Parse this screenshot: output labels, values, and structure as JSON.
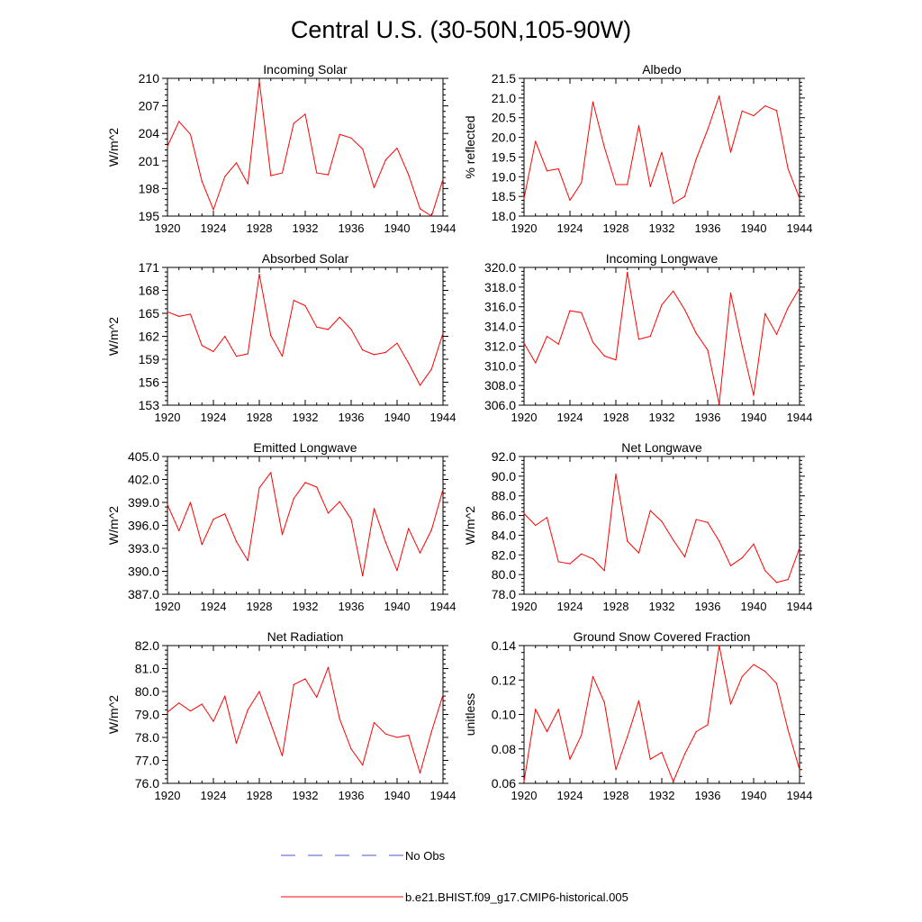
{
  "title": "Central U.S. (30-50N,105-90W)",
  "legend": {
    "obs_label": "No Obs",
    "obs_color": "#4a55c8",
    "model_label": "b.e21.BHIST.f09_g17.CMIP6-historical.005",
    "model_color": "#ff0000"
  },
  "chart_data": [
    {
      "type": "line",
      "title": "Incoming Solar",
      "ylabel": "W/m^2",
      "xlim": [
        1920,
        1944
      ],
      "ylim": [
        195,
        210
      ],
      "x_ticks": [
        "1920",
        "1924",
        "1928",
        "1932",
        "1936",
        "1940",
        "1944"
      ],
      "y_ticks": [
        "195",
        "198",
        "201",
        "204",
        "207",
        "210"
      ],
      "x": [
        1920,
        1921,
        1922,
        1923,
        1924,
        1925,
        1926,
        1927,
        1928,
        1929,
        1930,
        1931,
        1932,
        1933,
        1934,
        1935,
        1936,
        1937,
        1938,
        1939,
        1940,
        1941,
        1942,
        1943,
        1944
      ],
      "series": [
        {
          "name": "b.e21.BHIST.f09_g17.CMIP6-historical.005",
          "values": [
            202.6,
            205.3,
            203.9,
            198.8,
            195.7,
            199.3,
            200.8,
            198.5,
            209.7,
            199.4,
            199.7,
            205.1,
            206.1,
            199.7,
            199.5,
            203.9,
            203.5,
            202.3,
            198.1,
            201.1,
            202.4,
            199.5,
            195.8,
            195.0,
            199.0
          ]
        }
      ]
    },
    {
      "type": "line",
      "title": "Albedo",
      "ylabel": "% reflected",
      "xlim": [
        1920,
        1944
      ],
      "ylim": [
        18.0,
        21.5
      ],
      "x_ticks": [
        "1920",
        "1924",
        "1928",
        "1932",
        "1936",
        "1940",
        "1944"
      ],
      "y_ticks": [
        "18.0",
        "18.5",
        "19.0",
        "19.5",
        "20.0",
        "20.5",
        "21.0",
        "21.5"
      ],
      "x": [
        1920,
        1921,
        1922,
        1923,
        1924,
        1925,
        1926,
        1927,
        1928,
        1929,
        1930,
        1931,
        1932,
        1933,
        1934,
        1935,
        1936,
        1937,
        1938,
        1939,
        1940,
        1941,
        1942,
        1943,
        1944
      ],
      "series": [
        {
          "name": "b.e21.BHIST.f09_g17.CMIP6-historical.005",
          "values": [
            18.45,
            19.9,
            19.15,
            19.2,
            18.4,
            18.85,
            20.9,
            19.75,
            18.8,
            18.8,
            20.3,
            18.75,
            19.62,
            18.32,
            18.5,
            19.45,
            20.2,
            21.05,
            19.62,
            20.67,
            20.55,
            20.8,
            20.68,
            19.2,
            18.45
          ]
        }
      ]
    },
    {
      "type": "line",
      "title": "Absorbed Solar",
      "ylabel": "W/m^2",
      "xlim": [
        1920,
        1944
      ],
      "ylim": [
        153,
        171
      ],
      "x_ticks": [
        "1920",
        "1924",
        "1928",
        "1932",
        "1936",
        "1940",
        "1944"
      ],
      "y_ticks": [
        "153",
        "156",
        "159",
        "162",
        "165",
        "168",
        "171"
      ],
      "x": [
        1920,
        1921,
        1922,
        1923,
        1924,
        1925,
        1926,
        1927,
        1928,
        1929,
        1930,
        1931,
        1932,
        1933,
        1934,
        1935,
        1936,
        1937,
        1938,
        1939,
        1940,
        1941,
        1942,
        1943,
        1944
      ],
      "series": [
        {
          "name": "b.e21.BHIST.f09_g17.CMIP6-historical.005",
          "values": [
            165.2,
            164.6,
            164.9,
            160.8,
            160.0,
            162.0,
            159.4,
            159.7,
            170.1,
            162.1,
            159.4,
            166.7,
            166.0,
            163.2,
            162.9,
            164.5,
            162.9,
            160.2,
            159.6,
            159.9,
            161.1,
            158.5,
            155.6,
            157.7,
            162.4
          ]
        }
      ]
    },
    {
      "type": "line",
      "title": "Incoming Longwave",
      "ylabel": "",
      "xlim": [
        1920,
        1944
      ],
      "ylim": [
        306.0,
        320.0
      ],
      "x_ticks": [
        "1920",
        "1924",
        "1928",
        "1932",
        "1936",
        "1940",
        "1944"
      ],
      "y_ticks": [
        "306.0",
        "308.0",
        "310.0",
        "312.0",
        "314.0",
        "316.0",
        "318.0",
        "320.0"
      ],
      "x": [
        1920,
        1921,
        1922,
        1923,
        1924,
        1925,
        1926,
        1927,
        1928,
        1929,
        1930,
        1931,
        1932,
        1933,
        1934,
        1935,
        1936,
        1937,
        1938,
        1939,
        1940,
        1941,
        1942,
        1943,
        1944
      ],
      "series": [
        {
          "name": "b.e21.BHIST.f09_g17.CMIP6-historical.005",
          "values": [
            312.3,
            310.3,
            313.0,
            312.2,
            315.6,
            315.4,
            312.4,
            311.0,
            310.6,
            319.5,
            312.7,
            313.0,
            316.2,
            317.6,
            315.7,
            313.3,
            311.6,
            306.1,
            317.4,
            312.0,
            307.0,
            315.3,
            313.2,
            315.9,
            317.9
          ]
        }
      ]
    },
    {
      "type": "line",
      "title": "Emitted Longwave",
      "ylabel": "W/m^2",
      "xlim": [
        1920,
        1944
      ],
      "ylim": [
        387.0,
        405.0
      ],
      "x_ticks": [
        "1920",
        "1924",
        "1928",
        "1932",
        "1936",
        "1940",
        "1944"
      ],
      "y_ticks": [
        "387.0",
        "390.0",
        "393.0",
        "396.0",
        "399.0",
        "402.0",
        "405.0"
      ],
      "x": [
        1920,
        1921,
        1922,
        1923,
        1924,
        1925,
        1926,
        1927,
        1928,
        1929,
        1930,
        1931,
        1932,
        1933,
        1934,
        1935,
        1936,
        1937,
        1938,
        1939,
        1940,
        1941,
        1942,
        1943,
        1944
      ],
      "series": [
        {
          "name": "b.e21.BHIST.f09_g17.CMIP6-historical.005",
          "values": [
            398.7,
            395.3,
            399.0,
            393.5,
            396.8,
            397.5,
            393.9,
            391.4,
            400.9,
            402.9,
            394.8,
            399.5,
            401.6,
            401.0,
            397.6,
            399.1,
            396.8,
            389.4,
            398.2,
            393.8,
            390.1,
            395.6,
            392.4,
            395.4,
            400.7
          ]
        }
      ]
    },
    {
      "type": "line",
      "title": "Net Longwave",
      "ylabel": "W/m^2",
      "xlim": [
        1920,
        1944
      ],
      "ylim": [
        78.0,
        92.0
      ],
      "x_ticks": [
        "1920",
        "1924",
        "1928",
        "1932",
        "1936",
        "1940",
        "1944"
      ],
      "y_ticks": [
        "78.0",
        "80.0",
        "82.0",
        "84.0",
        "86.0",
        "88.0",
        "90.0",
        "92.0"
      ],
      "x": [
        1920,
        1921,
        1922,
        1923,
        1924,
        1925,
        1926,
        1927,
        1928,
        1929,
        1930,
        1931,
        1932,
        1933,
        1934,
        1935,
        1936,
        1937,
        1938,
        1939,
        1940,
        1941,
        1942,
        1943,
        1944
      ],
      "series": [
        {
          "name": "b.e21.BHIST.f09_g17.CMIP6-historical.005",
          "values": [
            86.2,
            85.0,
            85.8,
            81.3,
            81.1,
            82.1,
            81.6,
            80.4,
            90.2,
            83.4,
            82.2,
            86.5,
            85.4,
            83.5,
            81.8,
            85.6,
            85.3,
            83.4,
            80.9,
            81.7,
            83.1,
            80.4,
            79.2,
            79.5,
            82.7
          ]
        }
      ]
    },
    {
      "type": "line",
      "title": "Net Radiation",
      "ylabel": "W/m^2",
      "xlim": [
        1920,
        1944
      ],
      "ylim": [
        76.0,
        82.0
      ],
      "x_ticks": [
        "1920",
        "1924",
        "1928",
        "1932",
        "1936",
        "1940",
        "1944"
      ],
      "y_ticks": [
        "76.0",
        "77.0",
        "78.0",
        "79.0",
        "80.0",
        "81.0",
        "82.0"
      ],
      "x": [
        1920,
        1921,
        1922,
        1923,
        1924,
        1925,
        1926,
        1927,
        1928,
        1929,
        1930,
        1931,
        1932,
        1933,
        1934,
        1935,
        1936,
        1937,
        1938,
        1939,
        1940,
        1941,
        1942,
        1943,
        1944
      ],
      "series": [
        {
          "name": "b.e21.BHIST.f09_g17.CMIP6-historical.005",
          "values": [
            79.1,
            79.5,
            79.15,
            79.45,
            78.7,
            79.8,
            77.75,
            79.2,
            80.0,
            78.6,
            77.2,
            80.3,
            80.55,
            79.75,
            81.05,
            78.8,
            77.5,
            76.8,
            78.65,
            78.15,
            78.0,
            78.1,
            76.45,
            78.25,
            79.85
          ]
        }
      ]
    },
    {
      "type": "line",
      "title": "Ground Snow Covered Fraction",
      "ylabel": "unitless",
      "xlim": [
        1920,
        1944
      ],
      "ylim": [
        0.06,
        0.14
      ],
      "x_ticks": [
        "1920",
        "1924",
        "1928",
        "1932",
        "1936",
        "1940",
        "1944"
      ],
      "y_ticks": [
        "0.06",
        "0.08",
        "0.10",
        "0.12",
        "0.14"
      ],
      "x": [
        1920,
        1921,
        1922,
        1923,
        1924,
        1925,
        1926,
        1927,
        1928,
        1929,
        1930,
        1931,
        1932,
        1933,
        1934,
        1935,
        1936,
        1937,
        1938,
        1939,
        1940,
        1941,
        1942,
        1943,
        1944
      ],
      "series": [
        {
          "name": "b.e21.BHIST.f09_g17.CMIP6-historical.005",
          "values": [
            0.061,
            0.103,
            0.09,
            0.103,
            0.074,
            0.088,
            0.122,
            0.107,
            0.068,
            0.087,
            0.108,
            0.074,
            0.078,
            0.061,
            0.077,
            0.09,
            0.094,
            0.14,
            0.106,
            0.122,
            0.129,
            0.125,
            0.118,
            0.091,
            0.068
          ]
        }
      ]
    }
  ]
}
